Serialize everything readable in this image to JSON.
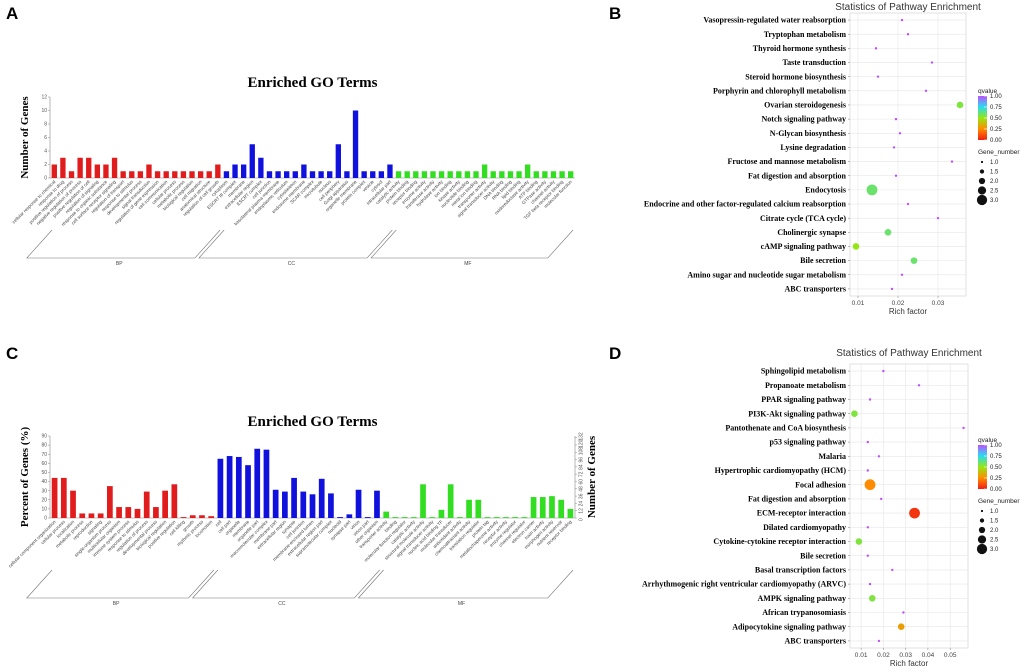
{
  "panel_labels": {
    "a": "A",
    "b": "B",
    "c": "C",
    "d": "D"
  },
  "colors": {
    "bp": "#e01c1c",
    "cc": "#1111dd",
    "mf": "#33dd22",
    "grid": "#e4e4e4",
    "panel_bg": "#ffffff"
  },
  "chart_data": [
    {
      "id": "A",
      "type": "bar",
      "title": "Enriched GO Terms",
      "ylabel": "Number of Genes",
      "ylim": [
        0,
        12
      ],
      "yticks": [
        0,
        2,
        4,
        6,
        8,
        10,
        12
      ],
      "groups": [
        {
          "name": "BP",
          "color": "#e01c1c",
          "values": [
            2,
            3,
            1,
            3,
            3,
            2,
            2,
            3,
            1,
            1,
            1,
            2,
            1,
            1,
            1,
            1,
            1,
            1,
            1,
            2
          ]
        },
        {
          "name": "CC",
          "color": "#1111dd",
          "values": [
            1,
            2,
            2,
            5,
            3,
            1,
            1,
            1,
            1,
            2,
            1,
            1,
            1,
            5,
            1,
            10,
            1,
            1,
            1,
            2
          ]
        },
        {
          "name": "MF",
          "color": "#33dd22",
          "values": [
            1,
            1,
            1,
            1,
            1,
            1,
            1,
            1,
            1,
            1,
            2,
            1,
            1,
            1,
            1,
            2,
            1,
            1,
            1,
            1,
            1
          ]
        }
      ],
      "category_labels": [
        "cellular response to chemical",
        "response to drug",
        "positive regulation of process",
        "negative regulation of process",
        "positive regulation of cell",
        "regulation of signaling",
        "response to organic substance",
        "cell surface receptor signaling",
        "regulation of transport",
        "response to stimulus",
        "developmental process",
        "signal transduction",
        "regulation of gene expression",
        "cell communication",
        "cellular process",
        "metabolic process",
        "biological regulation",
        "cell migration",
        "anatomical structure",
        "regulation of cell growth",
        "cytoplasm",
        "ESCRT III complex",
        "membrane",
        "extracellular region",
        "ESCRT complex",
        "cell junction",
        "basolateral plasma membrane",
        "endoplasmic reticulum",
        "cytoskeleton",
        "endosome membrane",
        "SCAR complex",
        "microtubule",
        "nucleus",
        "cell periphery",
        "Golgi apparatus",
        "organelle membrane",
        "protein complex",
        "vesicle",
        "cytosol",
        "intracellular part",
        "catalytic activity",
        "protein binding",
        "receptor binding",
        "enzyme activity",
        "transferase activity",
        "hydrolase activity",
        "ion binding",
        "kinase activity",
        "nucleotide binding",
        "metal ion binding",
        "transporter activity",
        "signal transducer activity",
        "DNA binding",
        "RNA binding",
        "lipid binding",
        "oxidoreductase activity",
        "ATP binding",
        "GTPase activity",
        "channel activity",
        "TGF beta receptor binding",
        "molecular function"
      ]
    },
    {
      "id": "B",
      "type": "scatter",
      "title": "Statistics of Pathway Enrichment",
      "xlabel": "Rich factor",
      "xlim": [
        0.008,
        0.037
      ],
      "xticks": [
        "0.01",
        "0.02",
        "0.03"
      ],
      "xtick_values": [
        0.01,
        0.02,
        0.03
      ],
      "pathways": [
        {
          "name": "Vasopressin-regulated water reabsorption",
          "x": 0.021,
          "qvalue": 1.0,
          "genes": 1
        },
        {
          "name": "Tryptophan metabolism",
          "x": 0.0225,
          "qvalue": 1.0,
          "genes": 1
        },
        {
          "name": "Thyroid hormone synthesis",
          "x": 0.0145,
          "qvalue": 1.0,
          "genes": 1
        },
        {
          "name": "Taste transduction",
          "x": 0.0285,
          "qvalue": 1.0,
          "genes": 1
        },
        {
          "name": "Steroid hormone biosynthesis",
          "x": 0.015,
          "qvalue": 1.0,
          "genes": 1
        },
        {
          "name": "Porphyrin and chlorophyll metabolism",
          "x": 0.027,
          "qvalue": 1.0,
          "genes": 1
        },
        {
          "name": "Ovarian steroidogenesis",
          "x": 0.0355,
          "qvalue": 0.55,
          "genes": 2
        },
        {
          "name": "Notch signaling pathway",
          "x": 0.0195,
          "qvalue": 1.0,
          "genes": 1
        },
        {
          "name": "N-Glycan biosynthesis",
          "x": 0.0205,
          "qvalue": 1.0,
          "genes": 1
        },
        {
          "name": "Lysine degradation",
          "x": 0.019,
          "qvalue": 1.0,
          "genes": 1
        },
        {
          "name": "Fructose and mannose metabolism",
          "x": 0.0335,
          "qvalue": 1.0,
          "genes": 1
        },
        {
          "name": "Fat digestion and absorption",
          "x": 0.0195,
          "qvalue": 1.0,
          "genes": 1
        },
        {
          "name": "Endocytosis",
          "x": 0.0135,
          "qvalue": 0.6,
          "genes": 3
        },
        {
          "name": "Endocrine and other factor-regulated calcium reabsorption",
          "x": 0.0225,
          "qvalue": 1.0,
          "genes": 1
        },
        {
          "name": "Citrate cycle (TCA cycle)",
          "x": 0.03,
          "qvalue": 1.0,
          "genes": 1
        },
        {
          "name": "Cholinergic synapse",
          "x": 0.0175,
          "qvalue": 0.6,
          "genes": 2
        },
        {
          "name": "cAMP signaling pathway",
          "x": 0.0095,
          "qvalue": 0.5,
          "genes": 2
        },
        {
          "name": "Bile secretion",
          "x": 0.024,
          "qvalue": 0.6,
          "genes": 2
        },
        {
          "name": "Amino sugar and nucleotide sugar metabolism",
          "x": 0.021,
          "qvalue": 1.0,
          "genes": 1
        },
        {
          "name": "ABC transporters",
          "x": 0.0185,
          "qvalue": 1.0,
          "genes": 1
        }
      ],
      "legend": {
        "qvalue_title": "qvalue",
        "qvalue_ticks": [
          "1.00",
          "0.75",
          "0.50",
          "0.25",
          "0.00"
        ],
        "size_title": "Gene_number",
        "size_ticks": [
          "1.0",
          "1.5",
          "2.0",
          "2.5",
          "3.0"
        ]
      }
    },
    {
      "id": "C",
      "type": "bar",
      "title": "Enriched GO Terms",
      "ylabel": "Percent of Genes (%)",
      "ylabel_right": "Number of Genes",
      "ylim": [
        0,
        90
      ],
      "yticks": [
        0,
        10,
        20,
        30,
        40,
        50,
        60,
        70,
        80,
        90
      ],
      "yticks_right": [
        0,
        12,
        24,
        36,
        48,
        60,
        72,
        84,
        96,
        108,
        120,
        132
      ],
      "groups": [
        {
          "name": "BP",
          "color": "#e01c1c",
          "values": [
            44,
            44,
            30,
            5,
            5,
            5,
            35,
            12,
            12,
            10,
            29,
            12,
            30,
            37,
            1,
            3,
            3,
            2
          ]
        },
        {
          "name": "CC",
          "color": "#1111dd",
          "values": [
            65,
            68,
            67,
            58,
            76,
            75,
            31,
            29,
            44,
            29,
            26,
            43,
            27,
            1,
            4,
            31,
            1,
            30
          ]
        },
        {
          "name": "MF",
          "color": "#33dd22",
          "values": [
            7,
            1,
            1,
            1,
            37,
            1,
            9,
            37,
            1,
            20,
            20,
            1,
            1,
            1,
            1,
            1,
            23,
            23,
            24,
            20,
            10
          ]
        }
      ],
      "category_labels": [
        "cellular component organization",
        "cellular process",
        "localization",
        "metabolic process",
        "reproduction",
        "signaling",
        "single-organism process",
        "multicellular organism",
        "immune system process",
        "response to stimulus",
        "regulation of process",
        "developmental process",
        "biological regulation",
        "positive regulation",
        "cell killing",
        "growth",
        "rhythmic process",
        "locomotion",
        "cell",
        "cell part",
        "organelle",
        "membrane",
        "organelle part",
        "macromolecular complex",
        "membrane part",
        "extracellular region",
        "synapse",
        "cell junction",
        "membrane-enclosed lumen",
        "extracellular region part",
        "supramolecular complex",
        "nucleoid",
        "synapse part",
        "virion",
        "virion part",
        "other organism",
        "transporter activity",
        "binding",
        "molecular function regulator",
        "catalytic activity",
        "structural molecule activity",
        "signal transducer activity",
        "nucleic acid binding TF",
        "molecular transducer",
        "antioxidant activity",
        "chemoattractant activity",
        "translation regulator",
        "protein tag",
        "metallochaperone activity",
        "receptor activity",
        "enzyme regulator",
        "channel regulator",
        "electron carrier",
        "toxin activity",
        "morphogen activity",
        "nutrient reservoir",
        "receptor binding"
      ]
    },
    {
      "id": "D",
      "type": "scatter",
      "title": "Statistics of Pathway Enrichment",
      "xlabel": "Rich factor",
      "xlim": [
        0.005,
        0.058
      ],
      "xticks": [
        "0.01",
        "0.02",
        "0.03",
        "0.04",
        "0.05"
      ],
      "xtick_values": [
        0.01,
        0.02,
        0.03,
        0.04,
        0.05
      ],
      "pathways": [
        {
          "name": "Sphingolipid metabolism",
          "x": 0.02,
          "qvalue": 1.0,
          "genes": 1
        },
        {
          "name": "Propanoate metabolism",
          "x": 0.036,
          "qvalue": 1.0,
          "genes": 1
        },
        {
          "name": "PPAR signaling pathway",
          "x": 0.014,
          "qvalue": 1.0,
          "genes": 1
        },
        {
          "name": "PI3K-Akt signaling pathway",
          "x": 0.007,
          "qvalue": 0.55,
          "genes": 2
        },
        {
          "name": "Pantothenate and CoA biosynthesis",
          "x": 0.056,
          "qvalue": 1.0,
          "genes": 1
        },
        {
          "name": "p53 signaling pathway",
          "x": 0.013,
          "qvalue": 1.0,
          "genes": 1
        },
        {
          "name": "Malaria",
          "x": 0.018,
          "qvalue": 1.0,
          "genes": 1
        },
        {
          "name": "Hypertrophic cardiomyopathy (HCM)",
          "x": 0.013,
          "qvalue": 1.0,
          "genes": 1
        },
        {
          "name": "Focal adhesion",
          "x": 0.014,
          "qvalue": 0.25,
          "genes": 3
        },
        {
          "name": "Fat digestion and absorption",
          "x": 0.019,
          "qvalue": 1.0,
          "genes": 1
        },
        {
          "name": "ECM-receptor interaction",
          "x": 0.034,
          "qvalue": 0.05,
          "genes": 3
        },
        {
          "name": "Dilated cardiomyopathy",
          "x": 0.013,
          "qvalue": 1.0,
          "genes": 1
        },
        {
          "name": "Cytokine-cytokine receptor interaction",
          "x": 0.009,
          "qvalue": 0.55,
          "genes": 2
        },
        {
          "name": "Bile secretion",
          "x": 0.013,
          "qvalue": 1.0,
          "genes": 1
        },
        {
          "name": "Basal transcription factors",
          "x": 0.024,
          "qvalue": 1.0,
          "genes": 1
        },
        {
          "name": "Arrhythmogenic right ventricular cardiomyopathy (ARVC)",
          "x": 0.014,
          "qvalue": 1.0,
          "genes": 1
        },
        {
          "name": "AMPK signaling pathway",
          "x": 0.015,
          "qvalue": 0.55,
          "genes": 2
        },
        {
          "name": "African trypanosomiasis",
          "x": 0.029,
          "qvalue": 1.0,
          "genes": 1
        },
        {
          "name": "Adipocytokine signaling pathway",
          "x": 0.028,
          "qvalue": 0.3,
          "genes": 2
        },
        {
          "name": "ABC transporters",
          "x": 0.018,
          "qvalue": 1.0,
          "genes": 1
        }
      ],
      "legend": {
        "qvalue_title": "qvalue",
        "qvalue_ticks": [
          "1.00",
          "0.75",
          "0.50",
          "0.25",
          "0.00"
        ],
        "size_title": "Gene_number",
        "size_ticks": [
          "1.0",
          "1.5",
          "2.0",
          "2.5",
          "3.0"
        ]
      }
    }
  ]
}
